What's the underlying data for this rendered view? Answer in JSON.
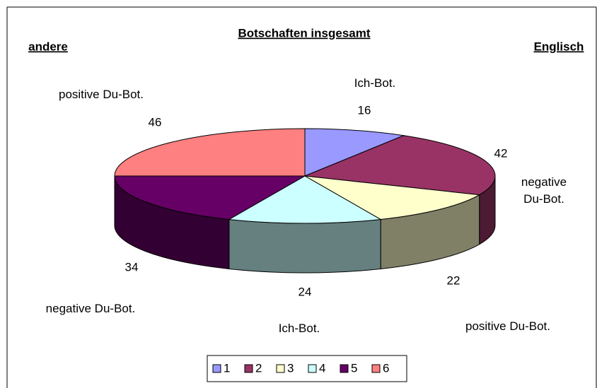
{
  "chart_data": {
    "type": "pie",
    "title": "Botschaften insgesamt",
    "annotations": [
      "andere",
      "Englisch"
    ],
    "categories": [
      "1",
      "2",
      "3",
      "4",
      "5",
      "6"
    ],
    "values": [
      16,
      42,
      22,
      24,
      34,
      46
    ],
    "slice_labels": [
      "Ich-Bot.",
      "negative Du-Bot.",
      "positive Du-Bot.",
      "Ich-Bot.",
      "negative Du-Bot.",
      "positive Du-Bot."
    ],
    "colors": [
      "#9999ff",
      "#993366",
      "#ffffcc",
      "#ccffff",
      "#660066",
      "#ff8080"
    ],
    "legend": "bottom"
  }
}
